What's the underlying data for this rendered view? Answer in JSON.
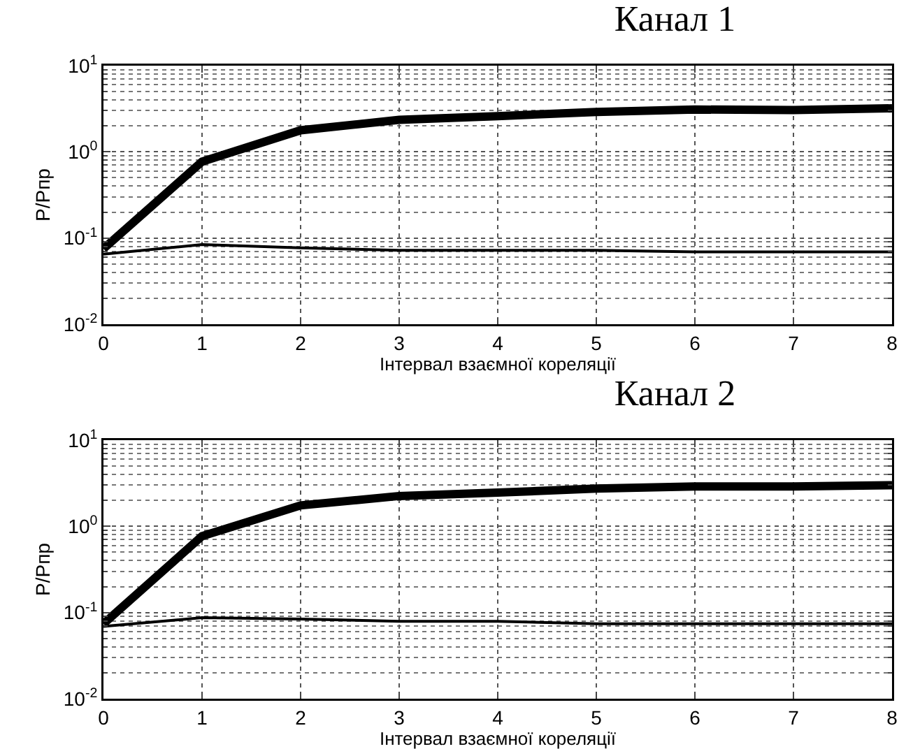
{
  "chart_data": [
    {
      "type": "line",
      "title": "Канал 1",
      "xlabel": "Інтервал взаємної кореляції",
      "ylabel": "P/Pпр",
      "x": [
        0,
        1,
        2,
        3,
        4,
        5,
        6,
        7,
        8
      ],
      "log": "y",
      "grid": true,
      "marker": "none",
      "line_style": "solid",
      "xlim": [
        0,
        8
      ],
      "xticks": [
        0,
        1,
        2,
        3,
        4,
        5,
        6,
        7,
        8
      ],
      "ylim": [
        0.01,
        10
      ],
      "yticks": [
        {
          "value": 0.01,
          "label": "10$^{-2}$"
        },
        {
          "value": 0.1,
          "label": "10$^{-1}$"
        },
        {
          "value": 1,
          "label": "10$^{0}$"
        },
        {
          "value": 10,
          "label": "10$^{1}$"
        }
      ],
      "series": [
        {
          "color": "#000000",
          "values": [
            0.075,
            0.77,
            1.78,
            2.35,
            2.6,
            2.9,
            3.1,
            3.05,
            3.2
          ]
        },
        {
          "color": "#000000",
          "values": [
            0.065,
            0.084,
            0.077,
            0.072,
            0.072,
            0.072,
            0.069,
            0.069,
            0.069
          ]
        }
      ]
    },
    {
      "type": "line",
      "title": "Канал 2",
      "xlabel": "Інтервал взаємної кореляції",
      "ylabel": "P/Pпр",
      "x": [
        0,
        1,
        2,
        3,
        4,
        5,
        6,
        7,
        8
      ],
      "log": "y",
      "grid": true,
      "marker": "none",
      "line_style": "solid",
      "xlim": [
        0,
        8
      ],
      "xticks": [
        0,
        1,
        2,
        3,
        4,
        5,
        6,
        7,
        8
      ],
      "ylim": [
        0.01,
        10
      ],
      "yticks": [
        {
          "value": 0.01,
          "label": "10$^{-2}$"
        },
        {
          "value": 0.1,
          "label": "10$^{-1}$"
        },
        {
          "value": 1,
          "label": "10$^{0}$"
        },
        {
          "value": 10,
          "label": "10$^{1}$"
        }
      ],
      "series": [
        {
          "color": "#000000",
          "values": [
            0.074,
            0.77,
            1.75,
            2.25,
            2.46,
            2.75,
            2.9,
            2.9,
            3.0
          ]
        },
        {
          "color": "#000000",
          "values": [
            0.069,
            0.087,
            0.084,
            0.079,
            0.079,
            0.074,
            0.074,
            0.074,
            0.074
          ]
        }
      ]
    }
  ]
}
